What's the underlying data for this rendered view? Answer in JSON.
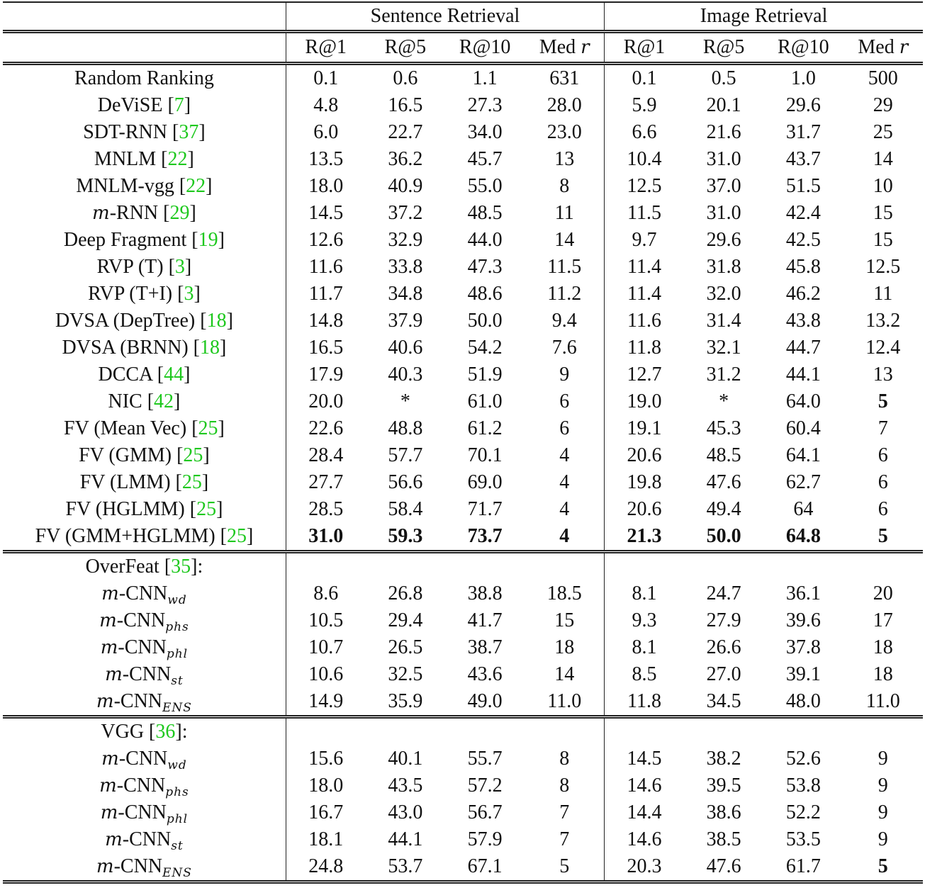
{
  "table": {
    "groups": [
      {
        "label": "Sentence Retrieval"
      },
      {
        "label": "Image Retrieval"
      }
    ],
    "columns": [
      {
        "label": "R@1"
      },
      {
        "label": "R@5"
      },
      {
        "label": "R@10"
      },
      {
        "label": "Med",
        "var": "r"
      },
      {
        "label": "R@1"
      },
      {
        "label": "R@5"
      },
      {
        "label": "R@10"
      },
      {
        "label": "Med",
        "var": "r"
      }
    ],
    "section1": [
      {
        "name": "Random Ranking",
        "ref": "",
        "cells": [
          "0.1",
          "0.6",
          "1.1",
          "631",
          "0.1",
          "0.5",
          "1.0",
          "500"
        ]
      },
      {
        "name": "DeViSE",
        "ref": "7",
        "cells": [
          "4.8",
          "16.5",
          "27.3",
          "28.0",
          "5.9",
          "20.1",
          "29.6",
          "29"
        ]
      },
      {
        "name": "SDT-RNN",
        "ref": "37",
        "cells": [
          "6.0",
          "22.7",
          "34.0",
          "23.0",
          "6.6",
          "21.6",
          "31.7",
          "25"
        ]
      },
      {
        "name": "MNLM",
        "ref": "22",
        "cells": [
          "13.5",
          "36.2",
          "45.7",
          "13",
          "10.4",
          "31.0",
          "43.7",
          "14"
        ]
      },
      {
        "name": "MNLM-vgg",
        "ref": "22",
        "cells": [
          "18.0",
          "40.9",
          "55.0",
          "8",
          "12.5",
          "37.0",
          "51.5",
          "10"
        ]
      },
      {
        "name_prefix_var": "m",
        "name": "-RNN",
        "ref": "29",
        "cells": [
          "14.5",
          "37.2",
          "48.5",
          "11",
          "11.5",
          "31.0",
          "42.4",
          "15"
        ]
      },
      {
        "name": "Deep Fragment",
        "ref": "19",
        "cells": [
          "12.6",
          "32.9",
          "44.0",
          "14",
          "9.7",
          "29.6",
          "42.5",
          "15"
        ]
      },
      {
        "name": "RVP (T)",
        "ref": "3",
        "cells": [
          "11.6",
          "33.8",
          "47.3",
          "11.5",
          "11.4",
          "31.8",
          "45.8",
          "12.5"
        ]
      },
      {
        "name": "RVP (T+I)",
        "ref": "3",
        "cells": [
          "11.7",
          "34.8",
          "48.6",
          "11.2",
          "11.4",
          "32.0",
          "46.2",
          "11"
        ]
      },
      {
        "name": "DVSA (DepTree)",
        "ref": "18",
        "cells": [
          "14.8",
          "37.9",
          "50.0",
          "9.4",
          "11.6",
          "31.4",
          "43.8",
          "13.2"
        ]
      },
      {
        "name": "DVSA (BRNN)",
        "ref": "18",
        "cells": [
          "16.5",
          "40.6",
          "54.2",
          "7.6",
          "11.8",
          "32.1",
          "44.7",
          "12.4"
        ]
      },
      {
        "name": "DCCA",
        "ref": "44",
        "cells": [
          "17.9",
          "40.3",
          "51.9",
          "9",
          "12.7",
          "31.2",
          "44.1",
          "13"
        ]
      },
      {
        "name": "NIC",
        "ref": "42",
        "cells": [
          "20.0",
          "*",
          "61.0",
          "6",
          "19.0",
          "*",
          "64.0",
          "5"
        ],
        "bold": [
          7
        ]
      },
      {
        "name": "FV (Mean Vec)",
        "ref": "25",
        "cells": [
          "22.6",
          "48.8",
          "61.2",
          "6",
          "19.1",
          "45.3",
          "60.4",
          "7"
        ]
      },
      {
        "name": "FV (GMM)",
        "ref": "25",
        "cells": [
          "28.4",
          "57.7",
          "70.1",
          "4",
          "20.6",
          "48.5",
          "64.1",
          "6"
        ]
      },
      {
        "name": "FV (LMM)",
        "ref": "25",
        "cells": [
          "27.7",
          "56.6",
          "69.0",
          "4",
          "19.8",
          "47.6",
          "62.7",
          "6"
        ]
      },
      {
        "name": "FV (HGLMM)",
        "ref": "25",
        "cells": [
          "28.5",
          "58.4",
          "71.7",
          "4",
          "20.6",
          "49.4",
          "64",
          "6"
        ]
      },
      {
        "name": "FV (GMM+HGLMM)",
        "ref": "25",
        "cells": [
          "31.0",
          "59.3",
          "73.7",
          "4",
          "21.3",
          "50.0",
          "64.8",
          "5"
        ],
        "bold": [
          0,
          1,
          2,
          3,
          4,
          5,
          6,
          7
        ]
      }
    ],
    "section2": {
      "header": {
        "name": "OverFeat",
        "ref": "35",
        "suffix": ":"
      },
      "rows": [
        {
          "prefix_var": "m",
          "name": "-CNN",
          "sub": "wd",
          "cells": [
            "8.6",
            "26.8",
            "38.8",
            "18.5",
            "8.1",
            "24.7",
            "36.1",
            "20"
          ]
        },
        {
          "prefix_var": "m",
          "name": "-CNN",
          "sub": "phs",
          "cells": [
            "10.5",
            "29.4",
            "41.7",
            "15",
            "9.3",
            "27.9",
            "39.6",
            "17"
          ]
        },
        {
          "prefix_var": "m",
          "name": "-CNN",
          "sub": "phl",
          "cells": [
            "10.7",
            "26.5",
            "38.7",
            "18",
            "8.1",
            "26.6",
            "37.8",
            "18"
          ]
        },
        {
          "prefix_var": "m",
          "name": "-CNN",
          "sub": "st",
          "cells": [
            "10.6",
            "32.5",
            "43.6",
            "14",
            "8.5",
            "27.0",
            "39.1",
            "18"
          ]
        },
        {
          "prefix_var": "m",
          "name": "-CNN",
          "sub": "ENS",
          "cells": [
            "14.9",
            "35.9",
            "49.0",
            "11.0",
            "11.8",
            "34.5",
            "48.0",
            "11.0"
          ]
        }
      ]
    },
    "section3": {
      "header": {
        "name": "VGG",
        "ref": "36",
        "suffix": ":"
      },
      "rows": [
        {
          "prefix_var": "m",
          "name": "-CNN",
          "sub": "wd",
          "cells": [
            "15.6",
            "40.1",
            "55.7",
            "8",
            "14.5",
            "38.2",
            "52.6",
            "9"
          ]
        },
        {
          "prefix_var": "m",
          "name": "-CNN",
          "sub": "phs",
          "cells": [
            "18.0",
            "43.5",
            "57.2",
            "8",
            "14.6",
            "39.5",
            "53.8",
            "9"
          ]
        },
        {
          "prefix_var": "m",
          "name": "-CNN",
          "sub": "phl",
          "cells": [
            "16.7",
            "43.0",
            "56.7",
            "7",
            "14.4",
            "38.6",
            "52.2",
            "9"
          ]
        },
        {
          "prefix_var": "m",
          "name": "-CNN",
          "sub": "st",
          "cells": [
            "18.1",
            "44.1",
            "57.9",
            "7",
            "14.6",
            "38.5",
            "53.5",
            "9"
          ]
        },
        {
          "prefix_var": "m",
          "name": "-CNN",
          "sub": "ENS",
          "cells": [
            "24.8",
            "53.7",
            "67.1",
            "5",
            "20.3",
            "47.6",
            "61.7",
            "5"
          ],
          "bold": [
            7
          ]
        }
      ]
    },
    "colors": {
      "reference_link": "#1ec81e",
      "text": "#111111",
      "rule": "#222222"
    }
  }
}
